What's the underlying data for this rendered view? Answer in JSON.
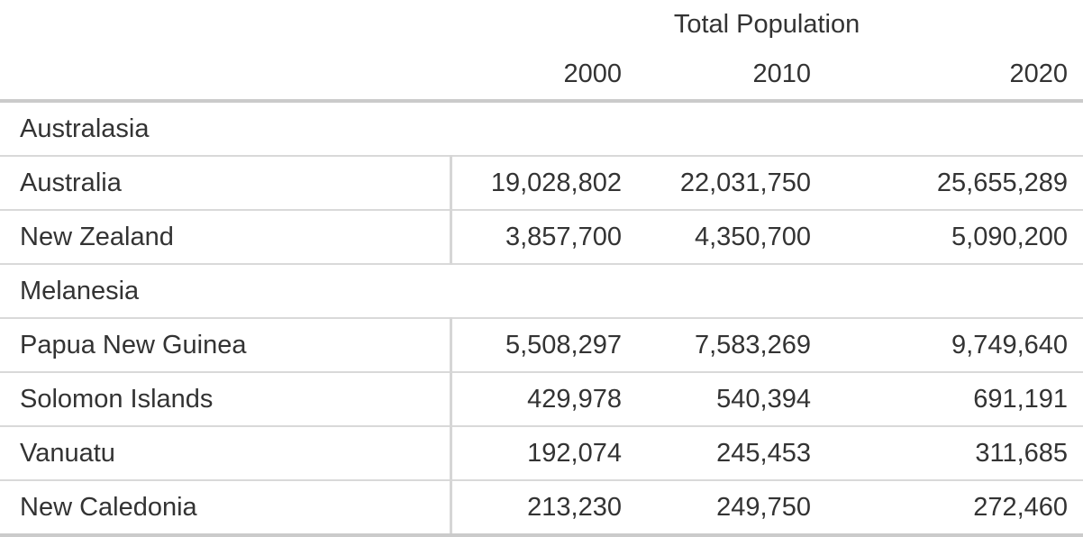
{
  "table": {
    "header": {
      "group_label": "Total Population",
      "year_columns": [
        "2000",
        "2010",
        "2020"
      ]
    },
    "groups": [
      {
        "name": "Australasia",
        "rows": [
          {
            "label": "Australia",
            "values": [
              "19,028,802",
              "22,031,750",
              "25,655,289"
            ]
          },
          {
            "label": "New Zealand",
            "values": [
              "3,857,700",
              "4,350,700",
              "5,090,200"
            ]
          }
        ]
      },
      {
        "name": "Melanesia",
        "rows": [
          {
            "label": "Papua New Guinea",
            "values": [
              "5,508,297",
              "7,583,269",
              "9,749,640"
            ]
          },
          {
            "label": "Solomon Islands",
            "values": [
              "429,978",
              "540,394",
              "691,191"
            ]
          },
          {
            "label": "Vanuatu",
            "values": [
              "192,074",
              "245,453",
              "311,685"
            ]
          },
          {
            "label": "New Caledonia",
            "values": [
              "213,230",
              "249,750",
              "272,460"
            ]
          }
        ]
      }
    ]
  },
  "colors": {
    "text": "#333333",
    "thick_rule": "#cbcbcb",
    "thin_rule": "#d9d9d9",
    "divider": "#d6d6d6",
    "background": "#ffffff"
  },
  "chart_data": {
    "type": "table",
    "title": "Total Population",
    "columns": [
      "2000",
      "2010",
      "2020"
    ],
    "groups": [
      {
        "name": "Australasia",
        "rows": [
          {
            "label": "Australia",
            "values": [
              19028802,
              22031750,
              25655289
            ]
          },
          {
            "label": "New Zealand",
            "values": [
              3857700,
              4350700,
              5090200
            ]
          }
        ]
      },
      {
        "name": "Melanesia",
        "rows": [
          {
            "label": "Papua New Guinea",
            "values": [
              5508297,
              7583269,
              9749640
            ]
          },
          {
            "label": "Solomon Islands",
            "values": [
              429978,
              540394,
              691191
            ]
          },
          {
            "label": "Vanuatu",
            "values": [
              192074,
              245453,
              311685
            ]
          },
          {
            "label": "New Caledonia",
            "values": [
              213230,
              249750,
              272460
            ]
          }
        ]
      }
    ]
  }
}
